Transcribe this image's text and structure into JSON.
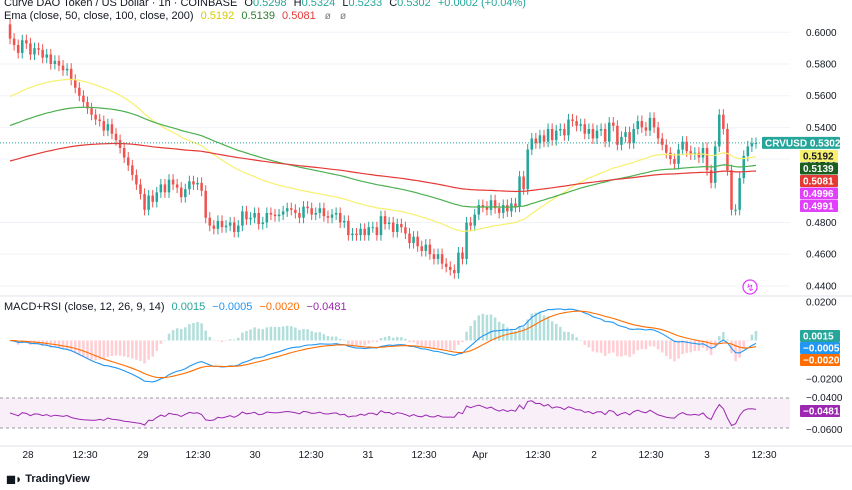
{
  "header": {
    "symbol_line": "Curve DAO Token / US Dollar · 1h · COINBASE",
    "ohlc": {
      "o_label": "O",
      "o": "0.5298",
      "h_label": "H",
      "h": "0.5324",
      "l_label": "L",
      "l": "0.5233",
      "c_label": "C",
      "c": "0.5302",
      "change": "+0.0002 (+0.04%)"
    },
    "ema_label": "Ema (close, 50, close, 100, close, 200)",
    "ema_values": [
      "0.5192",
      "0.5139",
      "0.5081"
    ],
    "icons": [
      "eye-slash-icon",
      "settings-icon"
    ]
  },
  "colors": {
    "up": "#26a69a",
    "down": "#ef5350",
    "ema50": "#f7f06e",
    "ema100": "#4caf50",
    "ema200": "#e53935",
    "macd": "#2196f3",
    "signal": "#ff6d00",
    "rsi": "#9c27b0",
    "grid": "#f0f3fa",
    "axis_text": "#131722",
    "marker": "#e040fb"
  },
  "price_axis": {
    "ticks": [
      "0.6000",
      "0.5800",
      "0.5600",
      "0.5400",
      "0.5200",
      "0.4800",
      "0.4600",
      "0.4400"
    ],
    "tick_values": [
      0.6,
      0.58,
      0.56,
      0.54,
      0.52,
      0.48,
      0.46,
      0.44
    ],
    "range": [
      0.4355,
      0.6065
    ],
    "labels": [
      {
        "text": "CRVUSD",
        "value": "0.5302",
        "color": "#26a69a"
      },
      {
        "text": "",
        "value": "0.5192",
        "color": "#f7f06e",
        "dark_text": true
      },
      {
        "text": "",
        "value": "0.5139",
        "color": "#1b5e20"
      },
      {
        "text": "",
        "value": "0.5081",
        "color": "#e53935"
      },
      {
        "text": "",
        "value": "0.4996",
        "color": "#e040fb"
      },
      {
        "text": "",
        "value": "0.4991",
        "color": "#e040fb"
      }
    ]
  },
  "macd_panel": {
    "label": "MACD+RSI (close, 12, 26, 9, 14)",
    "values": [
      "0.0015",
      "−0.0005",
      "−0.0020",
      "−0.0481"
    ],
    "value_colors": [
      "#26a69a",
      "#2196f3",
      "#ff6d00",
      "#9c27b0"
    ],
    "axis_ticks": [
      "0.0200",
      "−0.0200",
      "−0.0400",
      "−0.0600"
    ],
    "labels": [
      {
        "value": "0.0015",
        "color": "#26a69a"
      },
      {
        "value": "−0.0005",
        "color": "#2196f3"
      },
      {
        "value": "−0.0020",
        "color": "#ff6d00"
      },
      {
        "value": "−0.0481",
        "color": "#9c27b0"
      }
    ]
  },
  "time_axis": {
    "ticks": [
      "28",
      "12:30",
      "29",
      "12:30",
      "30",
      "12:30",
      "31",
      "12:30",
      "Apr",
      "12:30",
      "2",
      "12:30",
      "3",
      "12:30"
    ]
  },
  "branding": {
    "text": "TradingView"
  },
  "chart_data": {
    "type": "candlestick",
    "interval": "1h",
    "price_range": [
      0.4355,
      0.6065
    ],
    "closes": [
      0.596,
      0.592,
      0.587,
      0.595,
      0.593,
      0.586,
      0.59,
      0.589,
      0.584,
      0.586,
      0.58,
      0.582,
      0.579,
      0.576,
      0.577,
      0.57,
      0.565,
      0.56,
      0.556,
      0.552,
      0.548,
      0.545,
      0.544,
      0.538,
      0.542,
      0.536,
      0.532,
      0.527,
      0.521,
      0.516,
      0.51,
      0.504,
      0.498,
      0.488,
      0.497,
      0.493,
      0.499,
      0.504,
      0.499,
      0.507,
      0.504,
      0.502,
      0.496,
      0.501,
      0.506,
      0.504,
      0.505,
      0.5,
      0.483,
      0.478,
      0.476,
      0.481,
      0.477,
      0.478,
      0.48,
      0.474,
      0.478,
      0.487,
      0.482,
      0.483,
      0.486,
      0.479,
      0.48,
      0.486,
      0.485,
      0.484,
      0.485,
      0.487,
      0.489,
      0.488,
      0.486,
      0.483,
      0.49,
      0.489,
      0.485,
      0.486,
      0.489,
      0.484,
      0.483,
      0.485,
      0.486,
      0.48,
      0.481,
      0.472,
      0.473,
      0.472,
      0.476,
      0.472,
      0.477,
      0.477,
      0.472,
      0.484,
      0.479,
      0.48,
      0.474,
      0.479,
      0.477,
      0.473,
      0.467,
      0.471,
      0.465,
      0.462,
      0.466,
      0.46,
      0.457,
      0.46,
      0.454,
      0.452,
      0.45,
      0.448,
      0.461,
      0.457,
      0.48,
      0.478,
      0.485,
      0.491,
      0.49,
      0.488,
      0.494,
      0.489,
      0.486,
      0.491,
      0.487,
      0.492,
      0.49,
      0.509,
      0.501,
      0.526,
      0.533,
      0.53,
      0.535,
      0.531,
      0.539,
      0.532,
      0.538,
      0.539,
      0.535,
      0.545,
      0.544,
      0.541,
      0.542,
      0.536,
      0.539,
      0.533,
      0.538,
      0.539,
      0.531,
      0.543,
      0.541,
      0.529,
      0.534,
      0.537,
      0.53,
      0.539,
      0.544,
      0.54,
      0.538,
      0.546,
      0.54,
      0.533,
      0.529,
      0.524,
      0.52,
      0.517,
      0.526,
      0.531,
      0.525,
      0.523,
      0.524,
      0.521,
      0.527,
      0.513,
      0.505,
      0.528,
      0.548,
      0.539,
      0.513,
      0.488,
      0.488,
      0.508,
      0.522,
      0.528,
      0.53,
      0.5302
    ],
    "candles_summary": "hourly candles, Mar 28 – Apr 3",
    "ema_current": {
      "ema50": 0.5192,
      "ema100": 0.5139,
      "ema200": 0.5081
    },
    "macd_current": {
      "histogram": 0.0015,
      "macd": -0.0005,
      "signal": -0.002
    },
    "rsi_current": -0.0481
  }
}
